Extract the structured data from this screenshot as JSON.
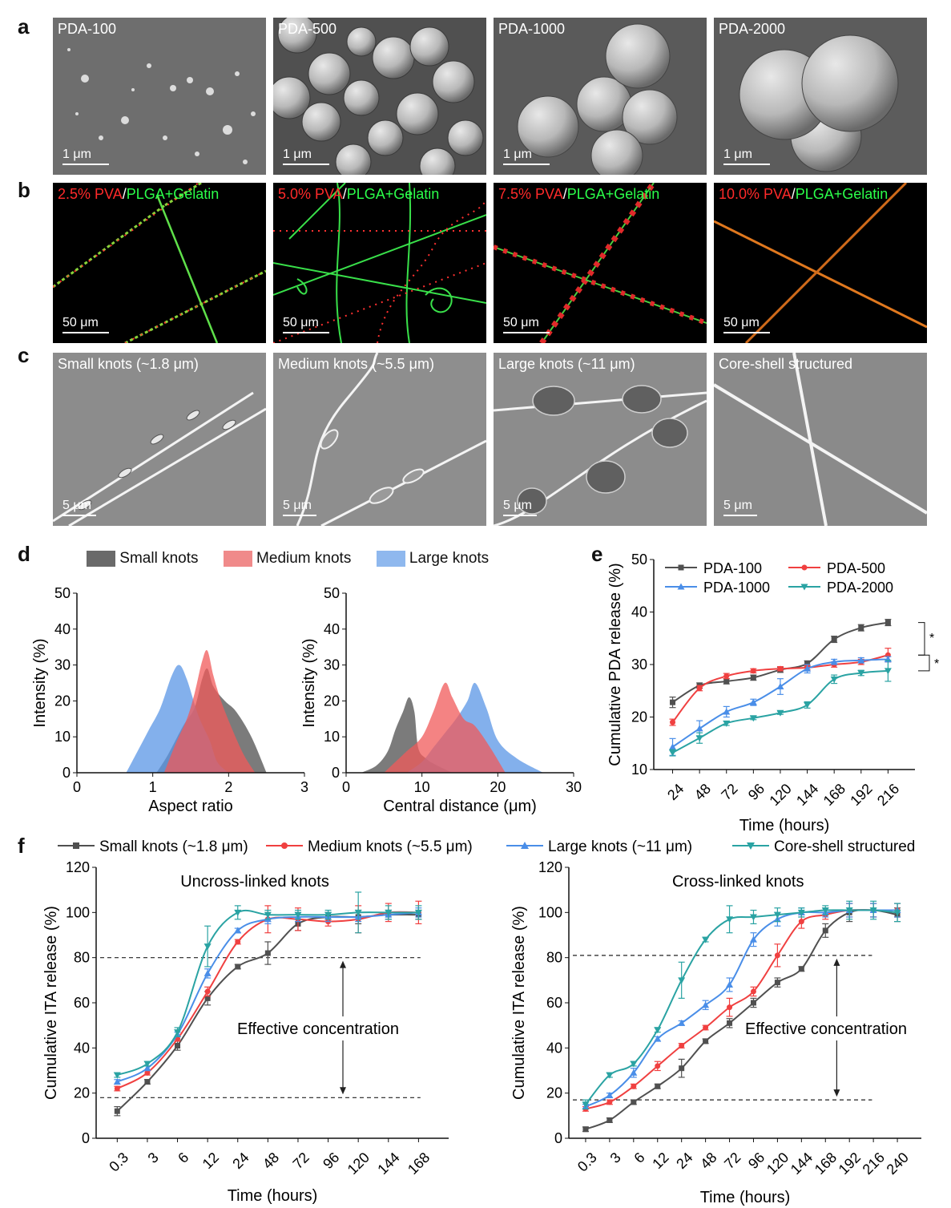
{
  "panels": {
    "a": {
      "label": "a",
      "tiles": [
        {
          "title": "PDA-100",
          "scale": "1 μm"
        },
        {
          "title": "PDA-500",
          "scale": "1 μm"
        },
        {
          "title": "PDA-1000",
          "scale": "1 μm"
        },
        {
          "title": "PDA-2000",
          "scale": "1 μm"
        }
      ]
    },
    "b": {
      "label": "b",
      "sep": "/",
      "suffix": "PLGA+Gelatin",
      "tiles": [
        {
          "pva": "2.5% PVA",
          "scale": "50 μm"
        },
        {
          "pva": "5.0% PVA",
          "scale": "50 μm"
        },
        {
          "pva": "7.5% PVA",
          "scale": "50 μm"
        },
        {
          "pva": "10.0% PVA",
          "scale": "50 μm"
        }
      ]
    },
    "c": {
      "label": "c",
      "tiles": [
        {
          "title": "Small knots (~1.8 μm)",
          "scale": "5 μm"
        },
        {
          "title": "Medium knots (~5.5 μm)",
          "scale": "5 μm"
        },
        {
          "title": "Large knots (~11 μm)",
          "scale": "5 μm"
        },
        {
          "title": "Core-shell structured",
          "scale": "5 μm"
        }
      ]
    },
    "d": {
      "label": "d",
      "legend": [
        "Small knots",
        "Medium knots",
        "Large knots"
      ]
    },
    "e": {
      "label": "e"
    },
    "f": {
      "label": "f",
      "legend": [
        "Small knots (~1.8 μm)",
        "Medium knots (~5.5 μm)",
        "Large knots (~11 μm)",
        "Core-shell structured"
      ]
    }
  },
  "colors": {
    "small": "#505050",
    "medium": "#f05050",
    "large": "#4a8ee8",
    "core": "#2aa3a3",
    "ered": "#f04040"
  },
  "chart_data": [
    {
      "id": "d1",
      "type": "area",
      "xlabel": "Aspect ratio",
      "ylabel": "Intensity (%)",
      "xlim": [
        0,
        3
      ],
      "ylim": [
        0,
        50
      ],
      "xticks": [
        0,
        1,
        2,
        3
      ],
      "yticks": [
        0,
        10,
        20,
        30,
        40,
        50
      ],
      "series": [
        {
          "name": "Small knots",
          "points": [
            [
              1.05,
              0
            ],
            [
              1.2,
              5
            ],
            [
              1.4,
              13
            ],
            [
              1.55,
              18
            ],
            [
              1.65,
              26
            ],
            [
              1.72,
              29
            ],
            [
              1.8,
              24
            ],
            [
              1.95,
              20
            ],
            [
              2.1,
              17
            ],
            [
              2.3,
              10
            ],
            [
              2.5,
              0
            ]
          ]
        },
        {
          "name": "Medium knots",
          "points": [
            [
              1.15,
              0
            ],
            [
              1.3,
              8
            ],
            [
              1.45,
              15
            ],
            [
              1.55,
              22
            ],
            [
              1.65,
              31
            ],
            [
              1.72,
              34
            ],
            [
              1.8,
              27
            ],
            [
              1.9,
              20
            ],
            [
              2.05,
              12
            ],
            [
              2.2,
              5
            ],
            [
              2.35,
              0
            ]
          ]
        },
        {
          "name": "Large knots",
          "points": [
            [
              0.65,
              0
            ],
            [
              0.8,
              6
            ],
            [
              0.95,
              12
            ],
            [
              1.1,
              18
            ],
            [
              1.25,
              27
            ],
            [
              1.35,
              30
            ],
            [
              1.45,
              26
            ],
            [
              1.6,
              16
            ],
            [
              1.75,
              9
            ],
            [
              1.85,
              3
            ],
            [
              2.0,
              0
            ]
          ]
        }
      ]
    },
    {
      "id": "d2",
      "type": "area",
      "xlabel": "Central distance (μm)",
      "ylabel": "Intensity (%)",
      "xlim": [
        0,
        30
      ],
      "ylim": [
        0,
        50
      ],
      "xticks": [
        0,
        10,
        20,
        30
      ],
      "yticks": [
        0,
        10,
        20,
        30,
        40,
        50
      ],
      "series": [
        {
          "name": "Small knots",
          "points": [
            [
              2,
              0
            ],
            [
              4,
              2
            ],
            [
              5.5,
              6
            ],
            [
              6.5,
              12
            ],
            [
              7.5,
              17
            ],
            [
              8.3,
              21
            ],
            [
              9,
              17
            ],
            [
              9.5,
              7
            ],
            [
              10.5,
              4
            ],
            [
              12,
              2
            ],
            [
              14,
              0
            ]
          ]
        },
        {
          "name": "Medium knots",
          "points": [
            [
              5,
              0
            ],
            [
              6.5,
              3
            ],
            [
              8,
              6
            ],
            [
              10,
              10
            ],
            [
              11.5,
              17
            ],
            [
              13,
              25
            ],
            [
              14,
              21
            ],
            [
              15.5,
              15
            ],
            [
              17,
              13
            ],
            [
              19,
              7
            ],
            [
              21,
              0
            ]
          ]
        },
        {
          "name": "Large knots",
          "points": [
            [
              8,
              0
            ],
            [
              10,
              3
            ],
            [
              11.5,
              7
            ],
            [
              13,
              11
            ],
            [
              14.5,
              15
            ],
            [
              16,
              20
            ],
            [
              17,
              25
            ],
            [
              18.5,
              18
            ],
            [
              20,
              9
            ],
            [
              22.5,
              4
            ],
            [
              26,
              0
            ]
          ]
        }
      ]
    },
    {
      "id": "e",
      "type": "line",
      "xlabel": "Time (hours)",
      "ylabel": "Cumulative PDA release (%)",
      "categories": [
        "24",
        "48",
        "72",
        "96",
        "120",
        "144",
        "168",
        "192",
        "216"
      ],
      "ylim": [
        10,
        50
      ],
      "yticks": [
        10,
        20,
        30,
        40,
        50
      ],
      "significance": [
        "*",
        "*"
      ],
      "series": [
        {
          "name": "PDA-100",
          "marker": "square",
          "values": [
            22.8,
            26.0,
            26.8,
            27.5,
            29.0,
            30.2,
            34.8,
            37.0,
            38.0
          ],
          "err": [
            1.0,
            0.5,
            0.5,
            0.5,
            0.5,
            0.5,
            0.6,
            0.6,
            0.6
          ]
        },
        {
          "name": "PDA-500",
          "marker": "circle",
          "values": [
            19.0,
            25.5,
            27.8,
            28.8,
            29.2,
            29.4,
            30.0,
            30.5,
            31.8
          ],
          "err": [
            0.6,
            0.5,
            0.5,
            0.4,
            0.4,
            0.4,
            0.5,
            0.5,
            1.3
          ]
        },
        {
          "name": "PDA-1000",
          "marker": "triangle-up",
          "values": [
            14.3,
            17.8,
            21.0,
            22.8,
            25.8,
            29.2,
            30.5,
            30.8,
            31.0
          ],
          "err": [
            1.6,
            1.5,
            1.0,
            0.6,
            1.5,
            0.8,
            0.5,
            0.5,
            0.5
          ]
        },
        {
          "name": "PDA-2000",
          "marker": "triangle-down",
          "values": [
            13.2,
            16.0,
            18.8,
            19.8,
            20.8,
            22.3,
            27.2,
            28.4,
            28.8
          ],
          "err": [
            0.6,
            1.0,
            0.4,
            0.3,
            0.3,
            0.6,
            0.8,
            0.5,
            2.0
          ]
        }
      ]
    },
    {
      "id": "f1",
      "type": "line",
      "title": "Uncross-linked knots",
      "xlabel": "Time (hours)",
      "ylabel": "Cumulative ITA release (%)",
      "categories": [
        "0.3",
        "3",
        "6",
        "12",
        "24",
        "48",
        "72",
        "96",
        "120",
        "144",
        "168"
      ],
      "ylim": [
        0,
        120
      ],
      "yticks": [
        0,
        20,
        40,
        60,
        80,
        100,
        120
      ],
      "annotation": "Effective concentration",
      "thresholds": [
        80,
        18
      ],
      "series": [
        {
          "name": "Small knots (~1.8 μm)",
          "marker": "square",
          "values": [
            12,
            25,
            41,
            62,
            76,
            82,
            95,
            98,
            98,
            99,
            99
          ],
          "err": [
            2,
            1,
            2,
            3,
            1,
            5,
            3,
            2,
            3,
            2,
            2
          ]
        },
        {
          "name": "Medium knots (~5.5 μm)",
          "marker": "circle",
          "values": [
            22,
            29,
            44,
            65,
            87,
            97,
            97,
            96,
            97,
            100,
            100
          ],
          "err": [
            1,
            1,
            1,
            2,
            1,
            6,
            5,
            2,
            6,
            4,
            5
          ]
        },
        {
          "name": "Large knots (~11 μm)",
          "marker": "triangle-up",
          "values": [
            25,
            31,
            46,
            73,
            92,
            97,
            98,
            98,
            98,
            99,
            100
          ],
          "err": [
            1,
            1,
            1,
            2,
            1,
            2,
            2,
            2,
            2,
            2,
            2
          ]
        },
        {
          "name": "Core-shell structured",
          "marker": "triangle-down",
          "values": [
            28,
            33,
            47,
            85,
            100,
            99,
            99,
            99,
            100,
            100,
            100
          ],
          "err": [
            1,
            1,
            2,
            9,
            3,
            2,
            2,
            2,
            9,
            3,
            3
          ]
        }
      ]
    },
    {
      "id": "f2",
      "type": "line",
      "title": "Cross-linked knots",
      "xlabel": "Time (hours)",
      "ylabel": "Cumulative ITA release (%)",
      "categories": [
        "0.3",
        "3",
        "6",
        "12",
        "24",
        "48",
        "72",
        "96",
        "120",
        "144",
        "168",
        "192",
        "216",
        "240"
      ],
      "ylim": [
        0,
        120
      ],
      "yticks": [
        0,
        20,
        40,
        60,
        80,
        100,
        120
      ],
      "annotation": "Effective concentration",
      "thresholds": [
        81,
        17
      ],
      "series": [
        {
          "name": "Small knots (~1.8 μm)",
          "marker": "square",
          "values": [
            4,
            8,
            16,
            23,
            31,
            43,
            51,
            60,
            69,
            75,
            92,
            100,
            101,
            99
          ],
          "err": [
            1,
            1,
            1,
            1,
            4,
            1,
            2,
            2,
            2,
            1,
            3,
            4,
            3,
            3
          ]
        },
        {
          "name": "Medium knots (~5.5 μm)",
          "marker": "circle",
          "values": [
            13,
            16,
            23,
            32,
            41,
            49,
            58,
            65,
            81,
            96,
            99,
            101,
            101,
            101
          ],
          "err": [
            1,
            1,
            1,
            2,
            1,
            1,
            4,
            2,
            5,
            3,
            2,
            3,
            3,
            3
          ]
        },
        {
          "name": "Large knots (~11 μm)",
          "marker": "triangle-up",
          "values": [
            14,
            19,
            29,
            44,
            51,
            59,
            68,
            88,
            97,
            100,
            100,
            101,
            101,
            101
          ],
          "err": [
            1,
            1,
            2,
            1,
            1,
            2,
            3,
            3,
            3,
            2,
            2,
            3,
            3,
            3
          ]
        },
        {
          "name": "Core-shell structured",
          "marker": "triangle-down",
          "values": [
            15,
            28,
            33,
            48,
            70,
            88,
            97,
            98,
            99,
            100,
            101,
            101,
            101,
            100
          ],
          "err": [
            2,
            1,
            1,
            1,
            8,
            1,
            6,
            3,
            3,
            2,
            2,
            4,
            4,
            4
          ]
        }
      ]
    }
  ]
}
